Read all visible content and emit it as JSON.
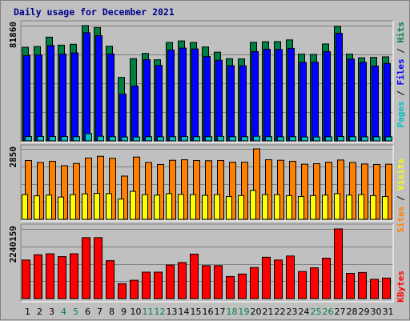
{
  "title": "Daily usage for December 2021",
  "colors": {
    "pages": "#00c0c0",
    "files": "#0000ff",
    "hits": "#008040",
    "sites": "#ff8000",
    "visits": "#ffff00",
    "kbytes": "#ff0000",
    "weekday_label": "#000000",
    "weekend_label": "#008040"
  },
  "chart_data": [
    {
      "type": "bar",
      "panel": "hits-files-pages",
      "categories": [
        "1",
        "2",
        "3",
        "4",
        "5",
        "6",
        "7",
        "8",
        "9",
        "10",
        "11",
        "12",
        "13",
        "14",
        "15",
        "16",
        "17",
        "18",
        "19",
        "20",
        "21",
        "22",
        "23",
        "24",
        "25",
        "26",
        "27",
        "28",
        "29",
        "30",
        "31"
      ],
      "weekend_days": [
        "4",
        "5",
        "11",
        "12",
        "18",
        "19",
        "25",
        "26"
      ],
      "y_label": "81860",
      "y_max": 81860,
      "legend": [
        "Pages",
        "Files",
        "Hits"
      ],
      "series": [
        {
          "name": "Hits",
          "values": [
            66500,
            67000,
            73700,
            68000,
            68600,
            81860,
            80500,
            67200,
            45100,
            58400,
            62100,
            57600,
            69900,
            71000,
            69900,
            66700,
            63000,
            58400,
            58200,
            70000,
            70400,
            70500,
            71700,
            61600,
            61400,
            68800,
            81300,
            61600,
            59000,
            59300,
            59700
          ]
        },
        {
          "name": "Files",
          "values": [
            60600,
            61000,
            67700,
            61600,
            62500,
            76800,
            74700,
            61700,
            33200,
            38900,
            57700,
            53600,
            64600,
            65900,
            65300,
            59900,
            57300,
            53400,
            53300,
            63400,
            65100,
            64900,
            65700,
            55800,
            55900,
            63400,
            76400,
            58100,
            55800,
            53100,
            55000
          ]
        },
        {
          "name": "Pages",
          "values": [
            3100,
            3200,
            3100,
            3100,
            3000,
            5200,
            3300,
            3000,
            2800,
            2800,
            3000,
            2900,
            3000,
            3100,
            3000,
            3000,
            3200,
            3000,
            3000,
            3300,
            3000,
            2900,
            3000,
            2800,
            2800,
            2900,
            3100,
            3000,
            2900,
            2900,
            2900
          ]
        }
      ]
    },
    {
      "type": "bar",
      "panel": "visits-sites",
      "categories": [
        "1",
        "2",
        "3",
        "4",
        "5",
        "6",
        "7",
        "8",
        "9",
        "10",
        "11",
        "12",
        "13",
        "14",
        "15",
        "16",
        "17",
        "18",
        "19",
        "20",
        "21",
        "22",
        "23",
        "24",
        "25",
        "26",
        "27",
        "28",
        "29",
        "30",
        "31"
      ],
      "y_label": "2850",
      "y_max": 2850,
      "legend": [
        "Sites",
        "Visits"
      ],
      "series": [
        {
          "name": "Sites",
          "values": [
            2380,
            2300,
            2350,
            2170,
            2260,
            2480,
            2550,
            2470,
            1750,
            2520,
            2300,
            2220,
            2390,
            2410,
            2380,
            2370,
            2380,
            2310,
            2310,
            2850,
            2410,
            2390,
            2350,
            2230,
            2250,
            2310,
            2400,
            2300,
            2240,
            2220,
            2230
          ]
        },
        {
          "name": "Visits",
          "values": [
            1000,
            950,
            980,
            900,
            1000,
            1030,
            1050,
            1040,
            820,
            1130,
            1000,
            980,
            1040,
            1010,
            1000,
            970,
            1000,
            920,
            960,
            1170,
            1000,
            1000,
            960,
            920,
            960,
            980,
            1040,
            980,
            1000,
            960,
            920
          ]
        }
      ]
    },
    {
      "type": "bar",
      "panel": "kbytes",
      "categories": [
        "1",
        "2",
        "3",
        "4",
        "5",
        "6",
        "7",
        "8",
        "9",
        "10",
        "11",
        "12",
        "13",
        "14",
        "15",
        "16",
        "17",
        "18",
        "19",
        "20",
        "21",
        "22",
        "23",
        "24",
        "25",
        "26",
        "27",
        "28",
        "29",
        "30",
        "31"
      ],
      "y_label": "2240159",
      "y_max": 2240159,
      "legend": [
        "KBytes"
      ],
      "series": [
        {
          "name": "KBytes",
          "values": [
            1240000,
            1410000,
            1440000,
            1350000,
            1440000,
            1960000,
            1960000,
            1220000,
            480000,
            590000,
            850000,
            850000,
            1080000,
            1160000,
            1430000,
            1060000,
            1060000,
            710000,
            790000,
            1000000,
            1330000,
            1240000,
            1370000,
            870000,
            990000,
            1300000,
            2240159,
            810000,
            840000,
            620000,
            660000
          ]
        }
      ]
    }
  ]
}
